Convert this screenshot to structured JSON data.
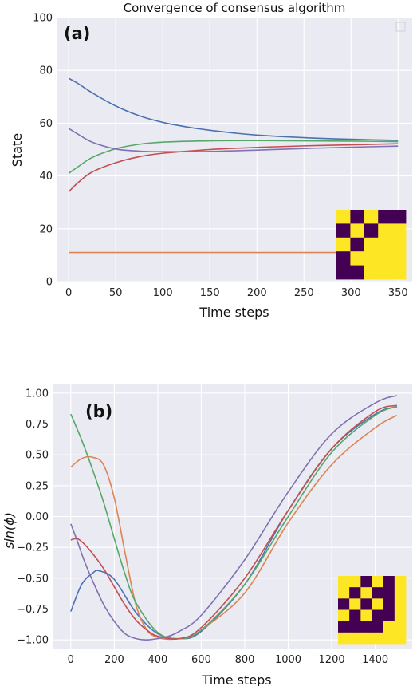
{
  "chart_data": [
    {
      "type": "line",
      "panel_label": "(a)",
      "title": "Convergence of consensus algorithm",
      "xlabel": "Time steps",
      "ylabel": "State",
      "xlim": [
        -12,
        365
      ],
      "ylim": [
        0,
        100
      ],
      "xticks": [
        0,
        50,
        100,
        150,
        200,
        250,
        300,
        350
      ],
      "yticks": [
        0,
        20,
        40,
        60,
        80,
        100
      ],
      "grid": true,
      "legend": "top-right (empty)",
      "series": [
        {
          "color": "#4c72b0",
          "x": [
            0,
            10,
            25,
            50,
            75,
            100,
            125,
            150,
            175,
            200,
            250,
            300,
            350
          ],
          "y": [
            77,
            75,
            71.5,
            66.5,
            62.8,
            60.3,
            58.6,
            57.3,
            56.3,
            55.5,
            54.5,
            53.9,
            53.5
          ]
        },
        {
          "color": "#dd8452",
          "x": [
            0,
            350
          ],
          "y": [
            11,
            11
          ]
        },
        {
          "color": "#55a868",
          "x": [
            0,
            10,
            25,
            50,
            75,
            100,
            150,
            200,
            250,
            300,
            350
          ],
          "y": [
            41,
            43.5,
            47,
            50.3,
            52,
            52.8,
            53.3,
            53.4,
            53.3,
            53.2,
            53
          ]
        },
        {
          "color": "#c44e52",
          "x": [
            0,
            10,
            25,
            50,
            75,
            100,
            150,
            200,
            250,
            300,
            350
          ],
          "y": [
            34,
            37.5,
            41.5,
            45,
            47.3,
            48.6,
            50,
            50.8,
            51.4,
            51.8,
            52.2
          ]
        },
        {
          "color": "#8172b3",
          "x": [
            0,
            10,
            25,
            50,
            75,
            100,
            150,
            200,
            250,
            300,
            350
          ],
          "y": [
            58,
            55.8,
            52.8,
            50.2,
            49.4,
            49.2,
            49.3,
            49.8,
            50.4,
            50.9,
            51.3
          ]
        }
      ],
      "inset_matrix": [
        [
          1,
          0,
          1,
          0,
          0
        ],
        [
          0,
          1,
          0,
          1,
          1
        ],
        [
          1,
          0,
          1,
          1,
          1
        ],
        [
          0,
          1,
          1,
          1,
          1
        ],
        [
          0,
          0,
          1,
          1,
          1
        ]
      ]
    },
    {
      "type": "line",
      "panel_label": "(b)",
      "title": "",
      "xlabel": "Time steps",
      "ylabel": "sin(ϕ)",
      "xlim": [
        -80,
        1570
      ],
      "ylim": [
        -1.07,
        1.07
      ],
      "xticks": [
        0,
        200,
        400,
        600,
        800,
        1000,
        1200,
        1400
      ],
      "yticks": [
        1.0,
        0.75,
        0.5,
        0.25,
        0.0,
        -0.25,
        -0.5,
        -0.75,
        -1.0
      ],
      "ytick_labels": [
        "1.00",
        "0.75",
        "0.50",
        "0.25",
        "0.00",
        "−0.25",
        "−0.50",
        "−0.75",
        "−1.00"
      ],
      "grid": true,
      "series": [
        {
          "color": "#4c72b0",
          "x": [
            0,
            50,
            100,
            130,
            200,
            300,
            400,
            500,
            600,
            800,
            1000,
            1200,
            1400,
            1500
          ],
          "y": [
            -0.77,
            -0.55,
            -0.46,
            -0.44,
            -0.51,
            -0.78,
            -0.95,
            -0.99,
            -0.93,
            -0.55,
            0.05,
            0.55,
            0.83,
            0.89
          ]
        },
        {
          "color": "#dd8452",
          "x": [
            0,
            50,
            100,
            150,
            200,
            250,
            300,
            350,
            400,
            450,
            500,
            550,
            600,
            800,
            1000,
            1200,
            1400,
            1500
          ],
          "y": [
            0.4,
            0.47,
            0.48,
            0.42,
            0.15,
            -0.3,
            -0.72,
            -0.92,
            -0.98,
            -0.995,
            -0.99,
            -0.97,
            -0.92,
            -0.62,
            -0.05,
            0.42,
            0.72,
            0.82
          ]
        },
        {
          "color": "#55a868",
          "x": [
            0,
            50,
            100,
            150,
            200,
            250,
            300,
            400,
            500,
            600,
            800,
            1000,
            1200,
            1400,
            1500
          ],
          "y": [
            0.83,
            0.62,
            0.38,
            0.12,
            -0.18,
            -0.47,
            -0.7,
            -0.94,
            -0.99,
            -0.92,
            -0.55,
            0.0,
            0.52,
            0.82,
            0.89
          ]
        },
        {
          "color": "#c44e52",
          "x": [
            0,
            30,
            60,
            100,
            150,
            200,
            250,
            300,
            350,
            400,
            500,
            600,
            800,
            1000,
            1200,
            1400,
            1500
          ],
          "y": [
            -0.19,
            -0.18,
            -0.22,
            -0.3,
            -0.42,
            -0.57,
            -0.72,
            -0.84,
            -0.92,
            -0.97,
            -0.99,
            -0.9,
            -0.5,
            0.05,
            0.55,
            0.85,
            0.9
          ]
        },
        {
          "color": "#8172b3",
          "x": [
            0,
            30,
            60,
            100,
            150,
            200,
            250,
            300,
            350,
            400,
            450,
            500,
            600,
            800,
            1000,
            1200,
            1400,
            1500
          ],
          "y": [
            -0.06,
            -0.2,
            -0.35,
            -0.52,
            -0.71,
            -0.85,
            -0.95,
            -0.99,
            -1.0,
            -0.99,
            -0.97,
            -0.93,
            -0.8,
            -0.35,
            0.2,
            0.67,
            0.92,
            0.98
          ]
        }
      ],
      "inset_matrix": [
        [
          1,
          1,
          0,
          1,
          0,
          1
        ],
        [
          1,
          0,
          1,
          0,
          0,
          1
        ],
        [
          0,
          1,
          0,
          1,
          0,
          1
        ],
        [
          1,
          0,
          1,
          0,
          0,
          1
        ],
        [
          0,
          0,
          0,
          0,
          1,
          1
        ],
        [
          1,
          1,
          1,
          1,
          1,
          1
        ]
      ]
    }
  ],
  "colors": {
    "axes_bg": "#eaeaf2",
    "grid": "#ffffff",
    "inset_on": "#fde725",
    "inset_off": "#440154"
  }
}
